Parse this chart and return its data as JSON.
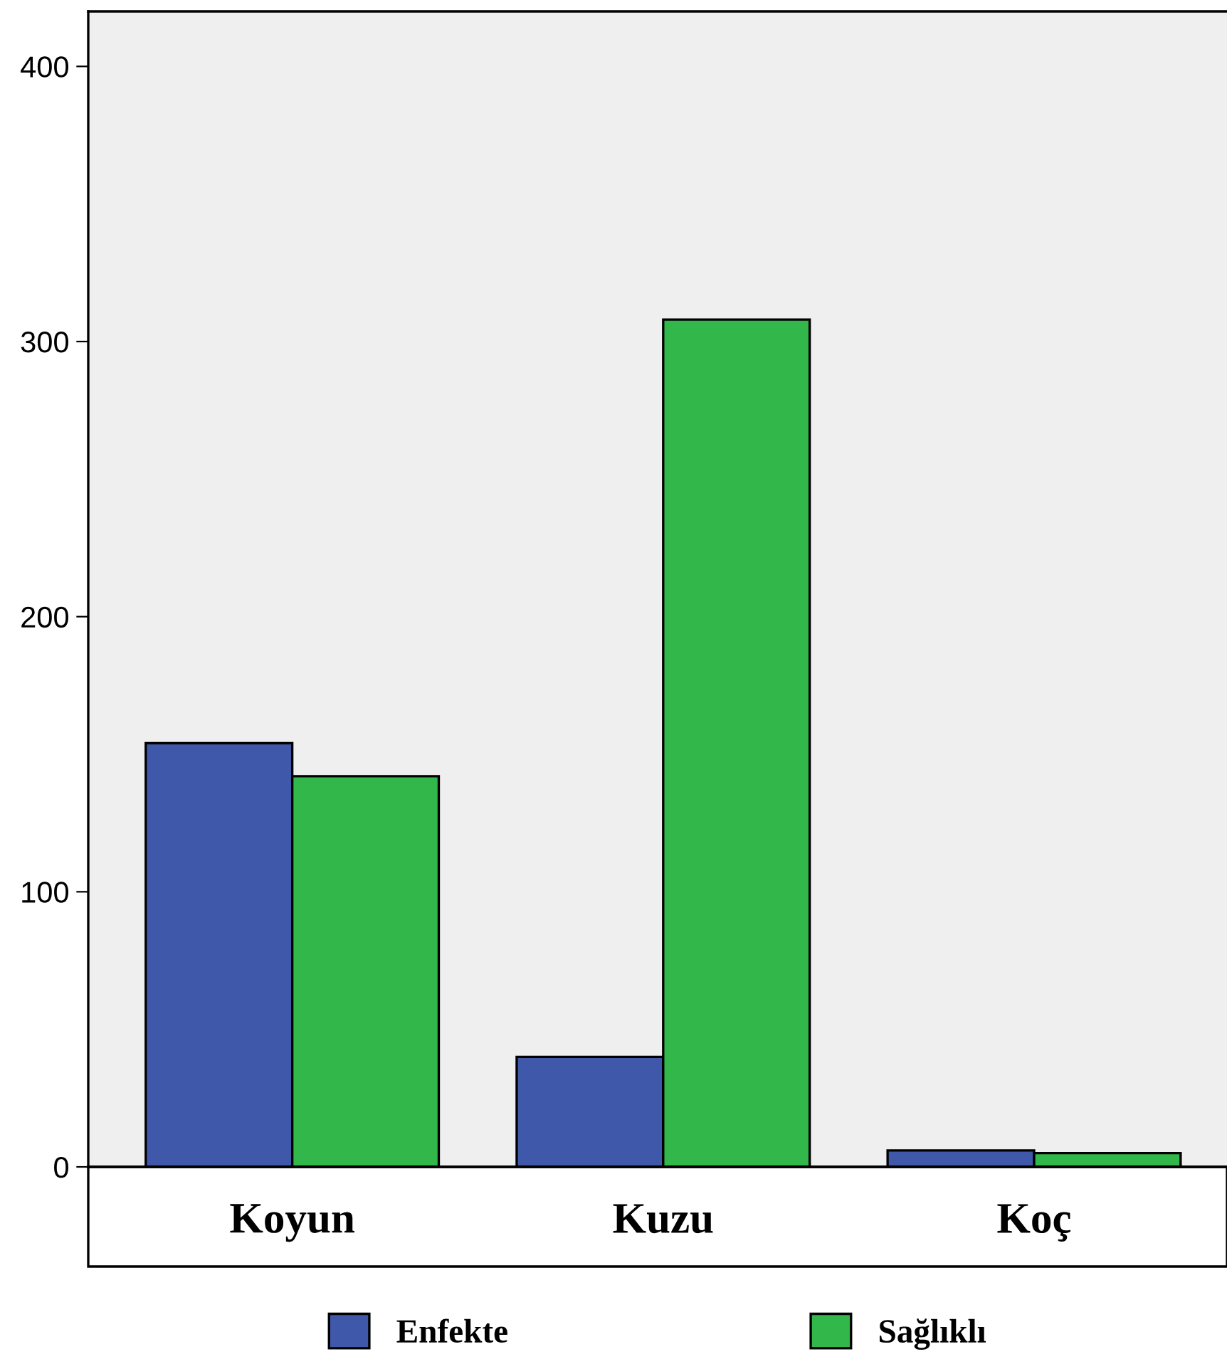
{
  "chart_data": {
    "type": "bar",
    "categories": [
      "Koyun",
      "Kuzu",
      "Koç"
    ],
    "series": [
      {
        "name": "Enfekte",
        "color": "#3f58aa",
        "values": [
          154,
          40,
          6
        ]
      },
      {
        "name": "Sağlıklı",
        "color": "#31b74a",
        "values": [
          142,
          308,
          5
        ]
      }
    ],
    "ylim": [
      0,
      420
    ],
    "yticks": [
      0,
      100,
      200,
      300,
      400
    ],
    "grid": false,
    "legend": "bottom"
  }
}
